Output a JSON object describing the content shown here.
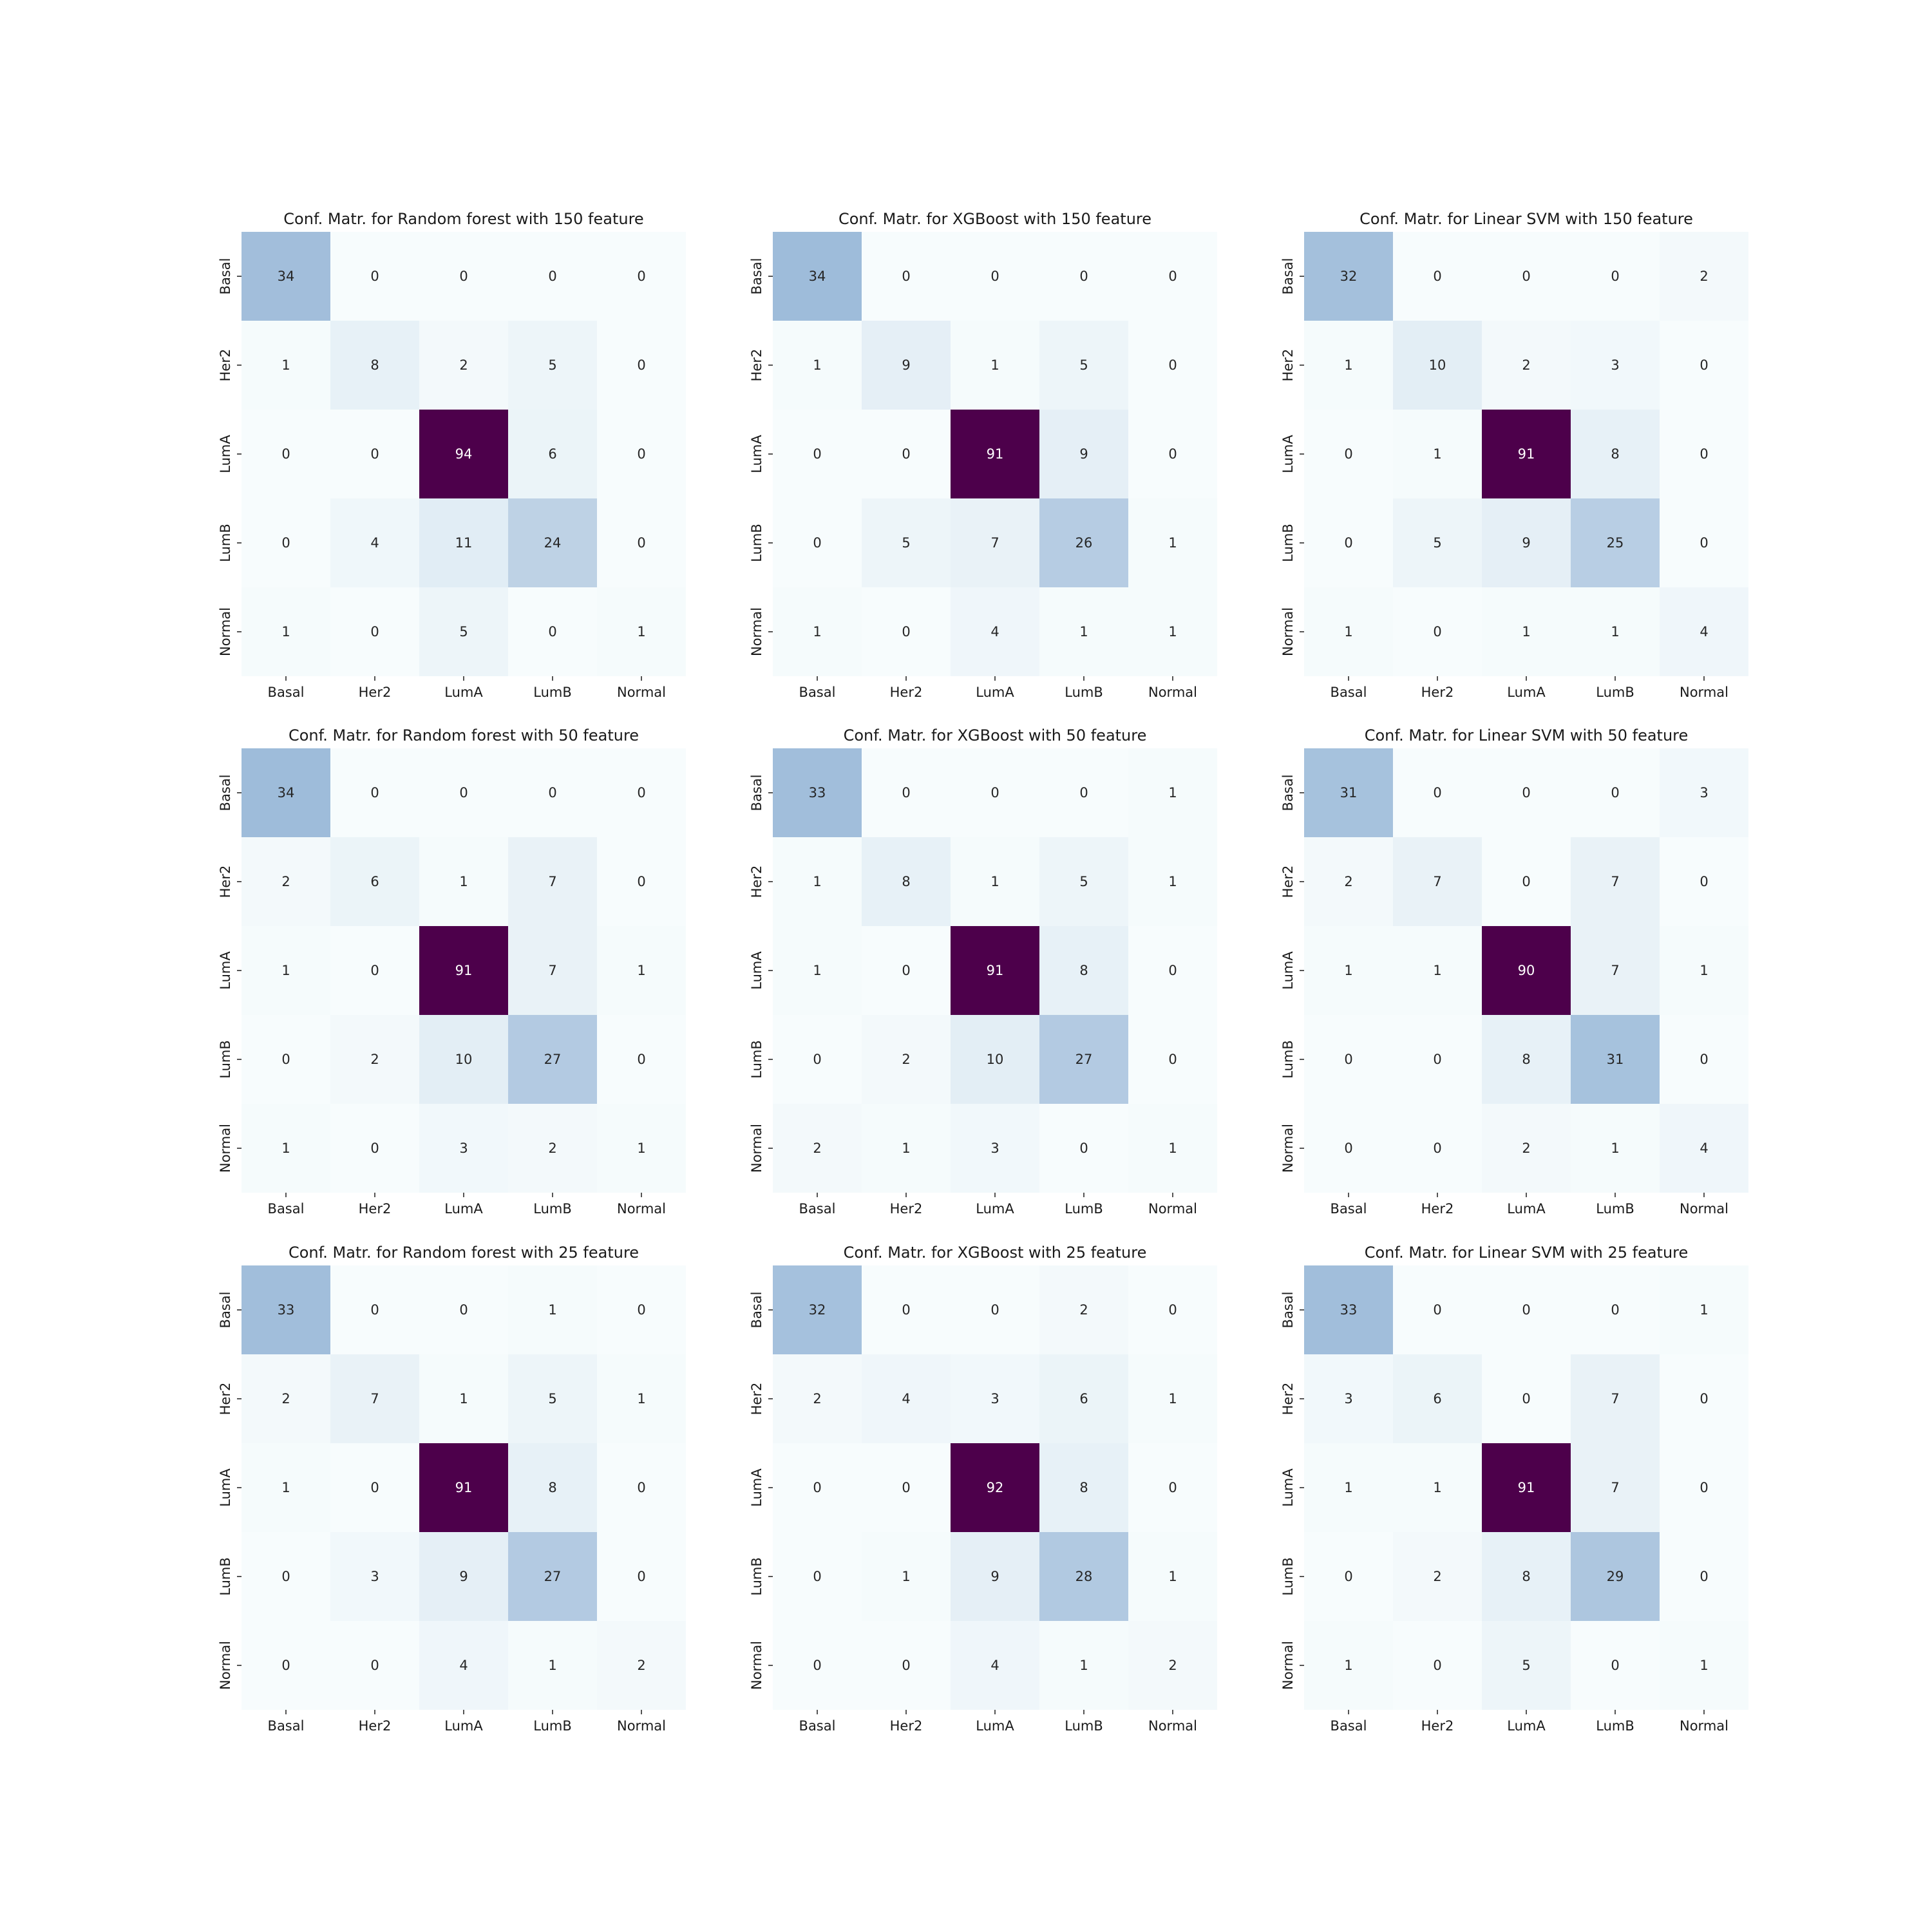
{
  "chart_data": [
    {
      "type": "heatmap",
      "title": "Conf. Matr. for Random forest with 150 feature",
      "x_categories": [
        "Basal",
        "Her2",
        "LumA",
        "LumB",
        "Normal"
      ],
      "y_categories": [
        "Basal",
        "Her2",
        "LumA",
        "LumB",
        "Normal"
      ],
      "values": [
        [
          34,
          0,
          0,
          0,
          0
        ],
        [
          1,
          8,
          2,
          5,
          0
        ],
        [
          0,
          0,
          94,
          6,
          0
        ],
        [
          0,
          4,
          11,
          24,
          0
        ],
        [
          1,
          0,
          5,
          0,
          1
        ]
      ],
      "colormap": "BuPu",
      "colorbar": false
    },
    {
      "type": "heatmap",
      "title": "Conf. Matr. for XGBoost with 150 feature",
      "x_categories": [
        "Basal",
        "Her2",
        "LumA",
        "LumB",
        "Normal"
      ],
      "y_categories": [
        "Basal",
        "Her2",
        "LumA",
        "LumB",
        "Normal"
      ],
      "values": [
        [
          34,
          0,
          0,
          0,
          0
        ],
        [
          1,
          9,
          1,
          5,
          0
        ],
        [
          0,
          0,
          91,
          9,
          0
        ],
        [
          0,
          5,
          7,
          26,
          1
        ],
        [
          1,
          0,
          4,
          1,
          1
        ]
      ],
      "colormap": "BuPu",
      "colorbar": false
    },
    {
      "type": "heatmap",
      "title": "Conf. Matr. for Linear SVM with 150 feature",
      "x_categories": [
        "Basal",
        "Her2",
        "LumA",
        "LumB",
        "Normal"
      ],
      "y_categories": [
        "Basal",
        "Her2",
        "LumA",
        "LumB",
        "Normal"
      ],
      "values": [
        [
          32,
          0,
          0,
          0,
          2
        ],
        [
          1,
          10,
          2,
          3,
          0
        ],
        [
          0,
          1,
          91,
          8,
          0
        ],
        [
          0,
          5,
          9,
          25,
          0
        ],
        [
          1,
          0,
          1,
          1,
          4
        ]
      ],
      "colormap": "BuPu",
      "colorbar": false
    },
    {
      "type": "heatmap",
      "title": "Conf. Matr. for Random forest with 50 feature",
      "x_categories": [
        "Basal",
        "Her2",
        "LumA",
        "LumB",
        "Normal"
      ],
      "y_categories": [
        "Basal",
        "Her2",
        "LumA",
        "LumB",
        "Normal"
      ],
      "values": [
        [
          34,
          0,
          0,
          0,
          0
        ],
        [
          2,
          6,
          1,
          7,
          0
        ],
        [
          1,
          0,
          91,
          7,
          1
        ],
        [
          0,
          2,
          10,
          27,
          0
        ],
        [
          1,
          0,
          3,
          2,
          1
        ]
      ],
      "colormap": "BuPu",
      "colorbar": false
    },
    {
      "type": "heatmap",
      "title": "Conf. Matr. for XGBoost with 50 feature",
      "x_categories": [
        "Basal",
        "Her2",
        "LumA",
        "LumB",
        "Normal"
      ],
      "y_categories": [
        "Basal",
        "Her2",
        "LumA",
        "LumB",
        "Normal"
      ],
      "values": [
        [
          33,
          0,
          0,
          0,
          1
        ],
        [
          1,
          8,
          1,
          5,
          1
        ],
        [
          1,
          0,
          91,
          8,
          0
        ],
        [
          0,
          2,
          10,
          27,
          0
        ],
        [
          2,
          1,
          3,
          0,
          1
        ]
      ],
      "colormap": "BuPu",
      "colorbar": false
    },
    {
      "type": "heatmap",
      "title": "Conf. Matr. for Linear SVM with 50 feature",
      "x_categories": [
        "Basal",
        "Her2",
        "LumA",
        "LumB",
        "Normal"
      ],
      "y_categories": [
        "Basal",
        "Her2",
        "LumA",
        "LumB",
        "Normal"
      ],
      "values": [
        [
          31,
          0,
          0,
          0,
          3
        ],
        [
          2,
          7,
          0,
          7,
          0
        ],
        [
          1,
          1,
          90,
          7,
          1
        ],
        [
          0,
          0,
          8,
          31,
          0
        ],
        [
          0,
          0,
          2,
          1,
          4
        ]
      ],
      "colormap": "BuPu",
      "colorbar": false
    },
    {
      "type": "heatmap",
      "title": "Conf. Matr. for Random forest with 25 feature",
      "x_categories": [
        "Basal",
        "Her2",
        "LumA",
        "LumB",
        "Normal"
      ],
      "y_categories": [
        "Basal",
        "Her2",
        "LumA",
        "LumB",
        "Normal"
      ],
      "values": [
        [
          33,
          0,
          0,
          1,
          0
        ],
        [
          2,
          7,
          1,
          5,
          1
        ],
        [
          1,
          0,
          91,
          8,
          0
        ],
        [
          0,
          3,
          9,
          27,
          0
        ],
        [
          0,
          0,
          4,
          1,
          2
        ]
      ],
      "colormap": "BuPu",
      "colorbar": false
    },
    {
      "type": "heatmap",
      "title": "Conf. Matr. for XGBoost with 25 feature",
      "x_categories": [
        "Basal",
        "Her2",
        "LumA",
        "LumB",
        "Normal"
      ],
      "y_categories": [
        "Basal",
        "Her2",
        "LumA",
        "LumB",
        "Normal"
      ],
      "values": [
        [
          32,
          0,
          0,
          2,
          0
        ],
        [
          2,
          4,
          3,
          6,
          1
        ],
        [
          0,
          0,
          92,
          8,
          0
        ],
        [
          0,
          1,
          9,
          28,
          1
        ],
        [
          0,
          0,
          4,
          1,
          2
        ]
      ],
      "colormap": "BuPu",
      "colorbar": false
    },
    {
      "type": "heatmap",
      "title": "Conf. Matr. for Linear SVM with 25 feature",
      "x_categories": [
        "Basal",
        "Her2",
        "LumA",
        "LumB",
        "Normal"
      ],
      "y_categories": [
        "Basal",
        "Her2",
        "LumA",
        "LumB",
        "Normal"
      ],
      "values": [
        [
          33,
          0,
          0,
          0,
          1
        ],
        [
          3,
          6,
          0,
          7,
          0
        ],
        [
          1,
          1,
          91,
          7,
          0
        ],
        [
          0,
          2,
          8,
          29,
          0
        ],
        [
          1,
          0,
          5,
          0,
          1
        ]
      ],
      "colormap": "BuPu",
      "colorbar": false
    }
  ]
}
